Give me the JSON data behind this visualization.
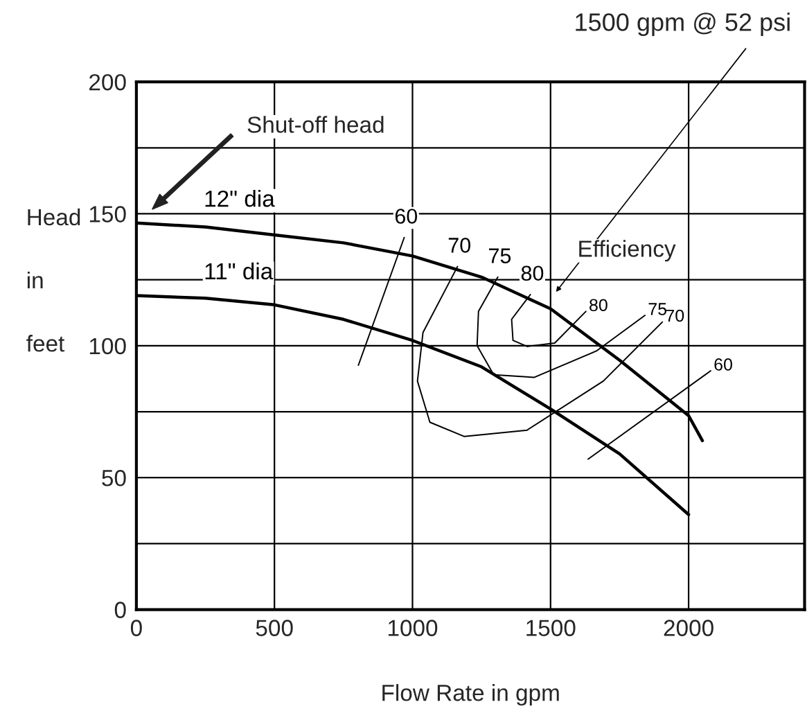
{
  "chart_data": {
    "type": "line",
    "xlabel": "Flow Rate in gpm",
    "ylabel": "Head in feet",
    "xlim": [
      0,
      2420
    ],
    "xticks": [
      0,
      500,
      1000,
      1500,
      2000
    ],
    "ylim": [
      0,
      200
    ],
    "yticks": [
      0,
      {
        "value": 25,
        "label": null
      },
      50,
      {
        "value": 75,
        "label": null
      },
      100,
      {
        "value": 125,
        "label": null
      },
      150,
      {
        "value": 175,
        "label": null
      },
      200
    ],
    "grid": true,
    "legend": false,
    "marker": "none",
    "line_style": "solid",
    "series": [
      {
        "name": "12\" dia",
        "color": "#000000",
        "x": [
          0,
          250,
          500,
          750,
          1000,
          1250,
          1500,
          1750,
          2000,
          2050
        ],
        "values": [
          146.5,
          145,
          142,
          139,
          134,
          126,
          114,
          94.5,
          73.5,
          64
        ]
      },
      {
        "name": "11\" dia",
        "color": "#000000",
        "x": [
          0,
          250,
          500,
          750,
          1000,
          1250,
          1500,
          1750,
          2000
        ],
        "values": [
          119,
          118,
          115.5,
          110,
          102,
          92,
          76,
          59,
          36
        ]
      },
      {
        "name": "60",
        "color": "#000000",
        "x": [
          804,
          970
        ],
        "values": [
          92.6,
          141
        ]
      },
      {
        "name": "70",
        "color": "#000000",
        "x": [
          1163,
          1038,
          1018,
          1063,
          1188,
          1415,
          1691,
          1905
        ],
        "values": [
          130,
          105,
          86.6,
          71,
          65.6,
          68,
          86.6,
          109
        ]
      },
      {
        "name": "75",
        "color": "#000000",
        "x": [
          1309,
          1239,
          1234,
          1294,
          1440,
          1666,
          1842
        ],
        "values": [
          126,
          113,
          100,
          89,
          88,
          98,
          111.5
        ]
      },
      {
        "name": "80",
        "color": "#000000",
        "x": [
          1427,
          1359,
          1364,
          1415,
          1515,
          1628
        ],
        "values": [
          119.4,
          110,
          102,
          99.7,
          101,
          113
        ]
      },
      {
        "name": "60",
        "color": "#000000",
        "x": [
          1636,
          2080
        ],
        "values": [
          57,
          90.5
        ]
      }
    ],
    "annotations": [
      "Shut-off head",
      "1500 gpm @ 52 psi",
      "Efficiency"
    ]
  }
}
